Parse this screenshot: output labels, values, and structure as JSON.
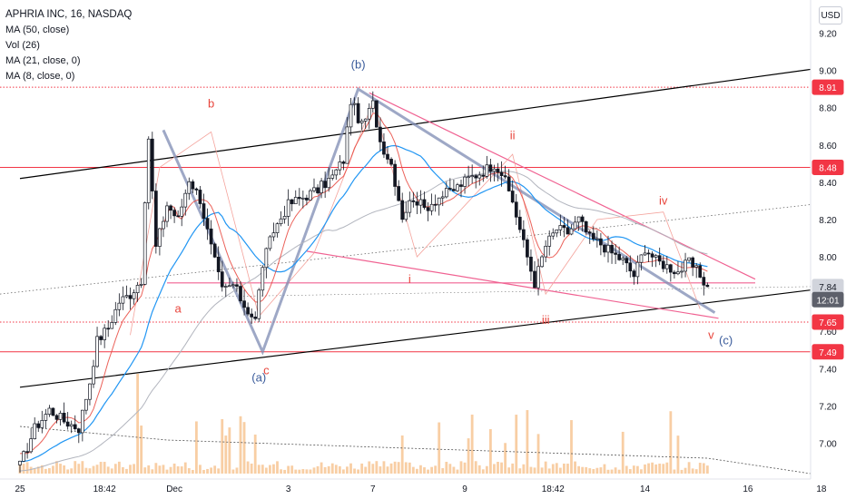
{
  "legend": {
    "title": "APHRIA INC, 16, NASDAQ",
    "indicators": [
      "MA (50, close)",
      "Vol (26)",
      "MA (21, close, 0)",
      "MA (8, close, 0)"
    ]
  },
  "currency_button": "USD",
  "colors": {
    "up": "#131722",
    "down": "#131722",
    "ma50": "#b2b5be",
    "ma21": "#2196f3",
    "ma8": "#e8453c",
    "channel": "#000000",
    "wedge": "#f06292",
    "wave": "#7e8bb3",
    "level": "#f23645",
    "volume_up": "#f2a65a",
    "volume_down": "#f2a65a",
    "wave_label_red": "#e8453c",
    "wave_label_blue": "#3a5b9b"
  },
  "chart_data": {
    "type": "candlestick",
    "title": "APHRIA INC, 16, NASDAQ",
    "ylim": [
      6.9,
      9.3
    ],
    "y_ticks": [
      "9.20",
      "9.00",
      "8.80",
      "8.60",
      "8.40",
      "8.20",
      "8.00",
      "7.80",
      "7.60",
      "7.40",
      "7.20",
      "7.00"
    ],
    "x_ticks": [
      {
        "label": "25",
        "i": 0
      },
      {
        "label": "18:42",
        "i": 23
      },
      {
        "label": "Dec",
        "i": 42
      },
      {
        "label": "3",
        "i": 73
      },
      {
        "label": "7",
        "i": 96
      },
      {
        "label": "9",
        "i": 121
      },
      {
        "label": "18:42",
        "i": 145
      },
      {
        "label": "14",
        "i": 170
      },
      {
        "label": "16",
        "i": 198
      },
      {
        "label": "18",
        "i": 218
      }
    ],
    "price_labels": [
      {
        "value": 8.91,
        "text": "8.91",
        "style": "red"
      },
      {
        "value": 8.48,
        "text": "8.48",
        "style": "red"
      },
      {
        "value": 7.84,
        "text": "7.84",
        "style": "gray"
      },
      {
        "value": 7.77,
        "text": "12:01",
        "style": "dark"
      },
      {
        "value": 7.65,
        "text": "7.65",
        "style": "red"
      },
      {
        "value": 7.49,
        "text": "7.49",
        "style": "red"
      }
    ],
    "levels": [
      {
        "value": 8.91,
        "style": "dotted"
      },
      {
        "value": 8.48,
        "style": "solid"
      },
      {
        "value": 7.65,
        "style": "dotted"
      },
      {
        "value": 7.49,
        "style": "solid"
      }
    ],
    "price_anchor_points": [
      [
        0,
        6.88
      ],
      [
        4,
        7.08
      ],
      [
        8,
        7.18
      ],
      [
        12,
        7.12
      ],
      [
        16,
        7.08
      ],
      [
        19,
        7.33
      ],
      [
        21,
        7.55
      ],
      [
        24,
        7.62
      ],
      [
        27,
        7.76
      ],
      [
        30,
        7.8
      ],
      [
        33,
        7.88
      ],
      [
        35,
        8.64
      ],
      [
        37,
        8.05
      ],
      [
        40,
        8.28
      ],
      [
        43,
        8.2
      ],
      [
        46,
        8.42
      ],
      [
        49,
        8.31
      ],
      [
        52,
        8.05
      ],
      [
        55,
        7.82
      ],
      [
        58,
        7.85
      ],
      [
        61,
        7.74
      ],
      [
        64,
        7.66
      ],
      [
        66,
        7.96
      ],
      [
        69,
        8.14
      ],
      [
        73,
        8.28
      ],
      [
        77,
        8.32
      ],
      [
        81,
        8.36
      ],
      [
        85,
        8.43
      ],
      [
        88,
        8.52
      ],
      [
        90,
        8.84
      ],
      [
        93,
        8.7
      ],
      [
        96,
        8.82
      ],
      [
        98,
        8.62
      ],
      [
        101,
        8.5
      ],
      [
        104,
        8.22
      ],
      [
        107,
        8.32
      ],
      [
        110,
        8.26
      ],
      [
        114,
        8.32
      ],
      [
        118,
        8.36
      ],
      [
        122,
        8.42
      ],
      [
        126,
        8.46
      ],
      [
        129,
        8.5
      ],
      [
        131,
        8.45
      ],
      [
        134,
        8.3
      ],
      [
        137,
        8.07
      ],
      [
        140,
        7.86
      ],
      [
        143,
        8.06
      ],
      [
        146,
        8.15
      ],
      [
        149,
        8.13
      ],
      [
        152,
        8.2
      ],
      [
        155,
        8.1
      ],
      [
        158,
        8.07
      ],
      [
        161,
        8.02
      ],
      [
        164,
        7.98
      ],
      [
        167,
        7.9
      ],
      [
        170,
        8.05
      ],
      [
        173,
        7.98
      ],
      [
        176,
        7.95
      ],
      [
        179,
        7.92
      ],
      [
        182,
        7.97
      ],
      [
        185,
        7.9
      ],
      [
        187,
        7.84
      ]
    ],
    "channel_lines": [
      {
        "from": [
          0,
          8.42
        ],
        "to": [
          235,
          9.06
        ]
      },
      {
        "from": [
          0,
          7.3
        ],
        "to": [
          235,
          7.87
        ]
      }
    ],
    "wedge_lines": [
      {
        "from": [
          95,
          8.88
        ],
        "to": [
          200,
          7.88
        ]
      },
      {
        "from": [
          78,
          8.03
        ],
        "to": [
          190,
          7.67
        ]
      },
      {
        "from": [
          40,
          7.86
        ],
        "to": [
          200,
          7.86
        ]
      }
    ],
    "wave_path": [
      [
        39,
        8.68
      ],
      [
        66,
        7.49
      ],
      [
        92,
        8.9
      ],
      [
        189,
        7.7
      ]
    ],
    "sub_wave_paths": [
      [
        [
          30,
          7.58
        ],
        [
          38,
          8.48
        ],
        [
          52,
          8.67
        ],
        [
          65,
          7.68
        ],
        [
          80,
          8.02
        ],
        [
          96,
          8.83
        ],
        [
          108,
          8.0
        ],
        [
          134,
          8.55
        ],
        [
          143,
          7.8
        ],
        [
          157,
          8.2
        ],
        [
          175,
          8.24
        ],
        [
          185,
          7.72
        ]
      ]
    ],
    "wave_labels": [
      {
        "text": "(b)",
        "at": [
          92,
          9.01
        ],
        "color": "blue"
      },
      {
        "text": "b",
        "at": [
          52,
          8.8
        ],
        "color": "red"
      },
      {
        "text": "a",
        "at": [
          43,
          7.7
        ],
        "color": "red"
      },
      {
        "text": "(a)",
        "at": [
          65,
          7.33
        ],
        "color": "blue"
      },
      {
        "text": "c",
        "at": [
          67,
          7.37
        ],
        "color": "red"
      },
      {
        "text": "ii",
        "at": [
          134,
          8.63
        ],
        "color": "red"
      },
      {
        "text": "i",
        "at": [
          106,
          7.86
        ],
        "color": "red"
      },
      {
        "text": "iii",
        "at": [
          143,
          7.64
        ],
        "color": "red"
      },
      {
        "text": "iv",
        "at": [
          175,
          8.28
        ],
        "color": "red"
      },
      {
        "text": "v",
        "at": [
          188,
          7.56
        ],
        "color": "red"
      },
      {
        "text": "(c)",
        "at": [
          192,
          7.53
        ],
        "color": "blue"
      }
    ]
  }
}
